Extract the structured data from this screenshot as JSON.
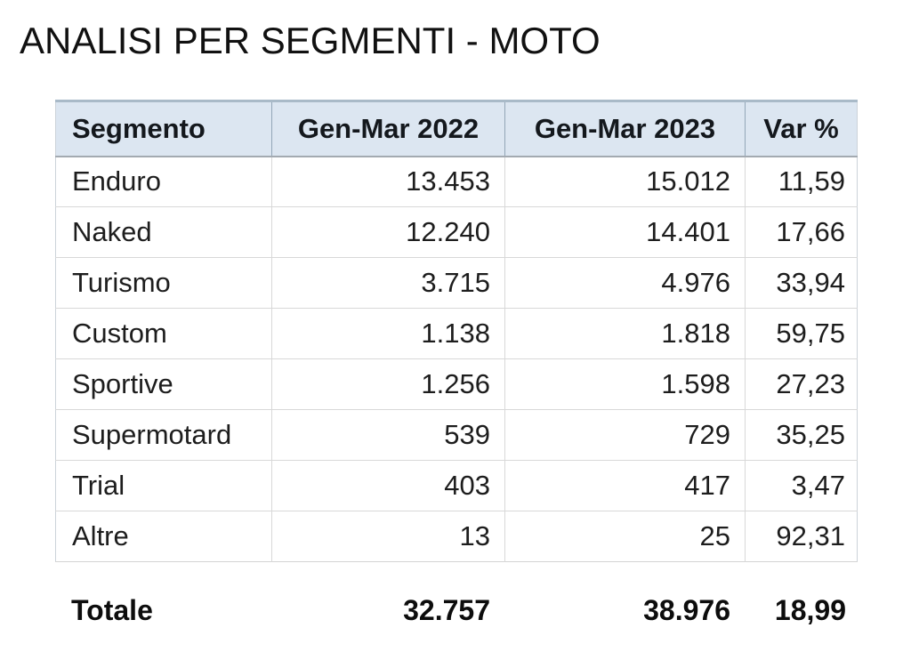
{
  "page": {
    "title": "ANALISI PER SEGMENTI - MOTO"
  },
  "table": {
    "headers": {
      "segment": "Segmento",
      "y2022": "Gen-Mar 2022",
      "y2023": "Gen-Mar 2023",
      "var": "Var %"
    },
    "rows": [
      {
        "segment": "Enduro",
        "y2022": "13.453",
        "y2023": "15.012",
        "var": "11,59"
      },
      {
        "segment": "Naked",
        "y2022": "12.240",
        "y2023": "14.401",
        "var": "17,66"
      },
      {
        "segment": "Turismo",
        "y2022": "3.715",
        "y2023": "4.976",
        "var": "33,94"
      },
      {
        "segment": "Custom",
        "y2022": "1.138",
        "y2023": "1.818",
        "var": "59,75"
      },
      {
        "segment": "Sportive",
        "y2022": "1.256",
        "y2023": "1.598",
        "var": "27,23"
      },
      {
        "segment": "Supermotard",
        "y2022": "539",
        "y2023": "729",
        "var": "35,25"
      },
      {
        "segment": "Trial",
        "y2022": "403",
        "y2023": "417",
        "var": "3,47"
      },
      {
        "segment": "Altre",
        "y2022": "13",
        "y2023": "25",
        "var": "92,31"
      }
    ],
    "total": {
      "label": "Totale",
      "y2022": "32.757",
      "y2023": "38.976",
      "var": "18,99"
    }
  },
  "colors": {
    "header_bg": "#dce6f1",
    "header_top_border": "#a9bac8",
    "header_divider": "#93a6b7",
    "grid_line": "#d8d8d8",
    "text": "#1d1d1d"
  }
}
